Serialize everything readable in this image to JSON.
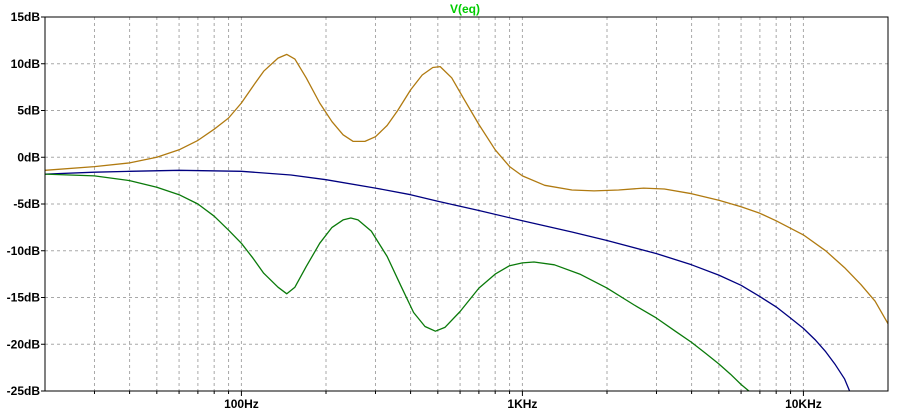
{
  "chart_data": {
    "type": "line",
    "title": "V(eq)",
    "title_color": "#00cc00",
    "x_scale": "log",
    "x_unit": "Hz",
    "xlim": [
      20,
      20000
    ],
    "ylim": [
      -25,
      15
    ],
    "grid": true,
    "x_ticks": [
      {
        "value": 100,
        "label": "100Hz"
      },
      {
        "value": 1000,
        "label": "1KHz"
      },
      {
        "value": 10000,
        "label": "10KHz"
      }
    ],
    "y_ticks": [
      {
        "value": 15,
        "label": "15dB"
      },
      {
        "value": 10,
        "label": "10dB"
      },
      {
        "value": 5,
        "label": "5dB"
      },
      {
        "value": 0,
        "label": "0dB"
      },
      {
        "value": -5,
        "label": "-5dB"
      },
      {
        "value": -10,
        "label": "-10dB"
      },
      {
        "value": -15,
        "label": "-15dB"
      },
      {
        "value": -20,
        "label": "-20dB"
      },
      {
        "value": -25,
        "label": "-25dB"
      }
    ],
    "series": [
      {
        "color": "#b07a10",
        "points": [
          [
            20,
            -1.4
          ],
          [
            30,
            -1.0
          ],
          [
            40,
            -0.6
          ],
          [
            50,
            0.0
          ],
          [
            60,
            0.8
          ],
          [
            70,
            1.8
          ],
          [
            80,
            3.0
          ],
          [
            90,
            4.2
          ],
          [
            100,
            5.8
          ],
          [
            110,
            7.6
          ],
          [
            120,
            9.2
          ],
          [
            135,
            10.6
          ],
          [
            145,
            11.0
          ],
          [
            155,
            10.5
          ],
          [
            170,
            8.5
          ],
          [
            190,
            5.8
          ],
          [
            210,
            3.8
          ],
          [
            230,
            2.4
          ],
          [
            250,
            1.7
          ],
          [
            275,
            1.7
          ],
          [
            300,
            2.2
          ],
          [
            330,
            3.4
          ],
          [
            360,
            5.0
          ],
          [
            400,
            7.2
          ],
          [
            440,
            8.8
          ],
          [
            480,
            9.6
          ],
          [
            510,
            9.7
          ],
          [
            560,
            8.5
          ],
          [
            620,
            6.2
          ],
          [
            700,
            3.5
          ],
          [
            800,
            0.8
          ],
          [
            900,
            -1.0
          ],
          [
            1000,
            -2.0
          ],
          [
            1200,
            -3.0
          ],
          [
            1500,
            -3.5
          ],
          [
            1800,
            -3.6
          ],
          [
            2200,
            -3.5
          ],
          [
            2700,
            -3.3
          ],
          [
            3200,
            -3.4
          ],
          [
            4000,
            -3.9
          ],
          [
            5000,
            -4.6
          ],
          [
            6000,
            -5.3
          ],
          [
            7000,
            -6.0
          ],
          [
            8000,
            -6.8
          ],
          [
            10000,
            -8.3
          ],
          [
            12000,
            -10.0
          ],
          [
            14000,
            -11.8
          ],
          [
            16000,
            -13.6
          ],
          [
            18000,
            -15.4
          ],
          [
            20000,
            -17.8
          ]
        ]
      },
      {
        "color": "#000080",
        "points": [
          [
            20,
            -1.8
          ],
          [
            30,
            -1.6
          ],
          [
            40,
            -1.5
          ],
          [
            60,
            -1.4
          ],
          [
            100,
            -1.5
          ],
          [
            150,
            -1.9
          ],
          [
            200,
            -2.4
          ],
          [
            300,
            -3.3
          ],
          [
            400,
            -4.0
          ],
          [
            500,
            -4.7
          ],
          [
            700,
            -5.7
          ],
          [
            1000,
            -6.8
          ],
          [
            1500,
            -8.0
          ],
          [
            2000,
            -8.9
          ],
          [
            3000,
            -10.3
          ],
          [
            4000,
            -11.5
          ],
          [
            5000,
            -12.6
          ],
          [
            6000,
            -13.7
          ],
          [
            7000,
            -14.9
          ],
          [
            8000,
            -16.0
          ],
          [
            9000,
            -17.2
          ],
          [
            10000,
            -18.3
          ],
          [
            11000,
            -19.5
          ],
          [
            12000,
            -20.8
          ],
          [
            13000,
            -22.2
          ],
          [
            14000,
            -23.7
          ],
          [
            14600,
            -25.0
          ]
        ]
      },
      {
        "color": "#0a7a0a",
        "points": [
          [
            20,
            -1.8
          ],
          [
            30,
            -2.0
          ],
          [
            40,
            -2.5
          ],
          [
            50,
            -3.2
          ],
          [
            60,
            -4.0
          ],
          [
            70,
            -5.0
          ],
          [
            80,
            -6.3
          ],
          [
            90,
            -7.8
          ],
          [
            100,
            -9.2
          ],
          [
            110,
            -10.8
          ],
          [
            120,
            -12.4
          ],
          [
            135,
            -13.9
          ],
          [
            145,
            -14.6
          ],
          [
            155,
            -13.9
          ],
          [
            170,
            -11.7
          ],
          [
            190,
            -9.2
          ],
          [
            210,
            -7.5
          ],
          [
            230,
            -6.7
          ],
          [
            245,
            -6.5
          ],
          [
            260,
            -6.7
          ],
          [
            290,
            -7.9
          ],
          [
            330,
            -10.6
          ],
          [
            370,
            -13.8
          ],
          [
            410,
            -16.6
          ],
          [
            450,
            -18.1
          ],
          [
            490,
            -18.6
          ],
          [
            530,
            -18.2
          ],
          [
            600,
            -16.5
          ],
          [
            700,
            -14.0
          ],
          [
            800,
            -12.5
          ],
          [
            900,
            -11.6
          ],
          [
            1000,
            -11.3
          ],
          [
            1100,
            -11.2
          ],
          [
            1300,
            -11.5
          ],
          [
            1600,
            -12.5
          ],
          [
            2000,
            -14.0
          ],
          [
            2500,
            -15.8
          ],
          [
            3000,
            -17.2
          ],
          [
            3500,
            -18.6
          ],
          [
            4000,
            -19.8
          ],
          [
            4500,
            -21.0
          ],
          [
            5000,
            -22.1
          ],
          [
            5500,
            -23.2
          ],
          [
            6000,
            -24.3
          ],
          [
            6400,
            -25.0
          ]
        ]
      }
    ]
  }
}
